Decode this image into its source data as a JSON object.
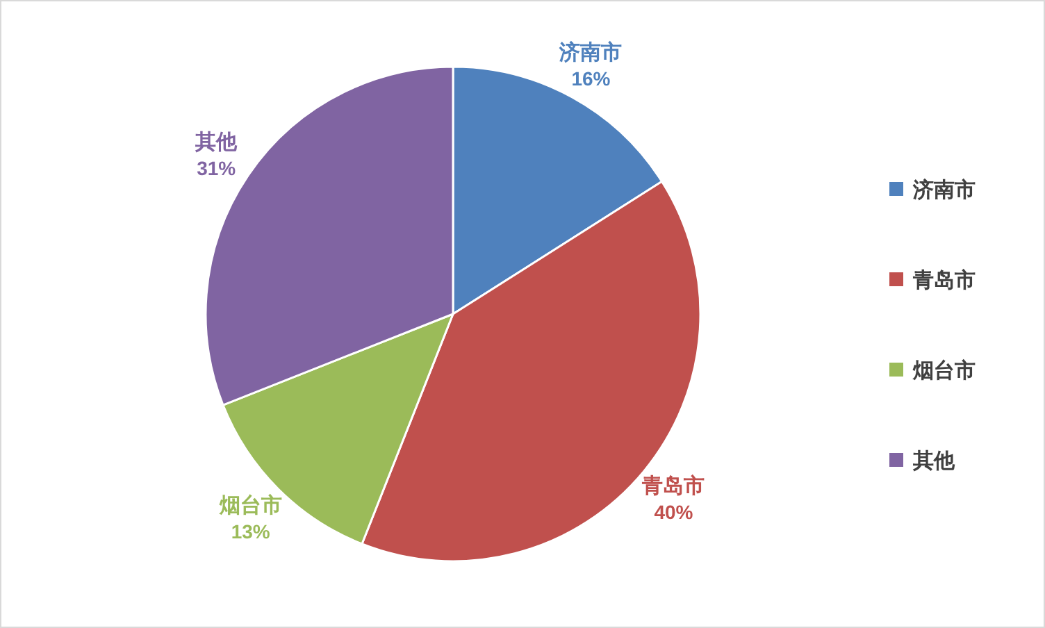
{
  "chart_data": {
    "type": "pie",
    "categories": [
      "济南市",
      "青岛市",
      "烟台市",
      "其他"
    ],
    "values": [
      16,
      40,
      13,
      31
    ],
    "colors": [
      "#4f81bd",
      "#c0504d",
      "#9bbb59",
      "#8064a2"
    ],
    "value_labels": [
      "16%",
      "40%",
      "13%",
      "31%"
    ],
    "legend": "right"
  }
}
